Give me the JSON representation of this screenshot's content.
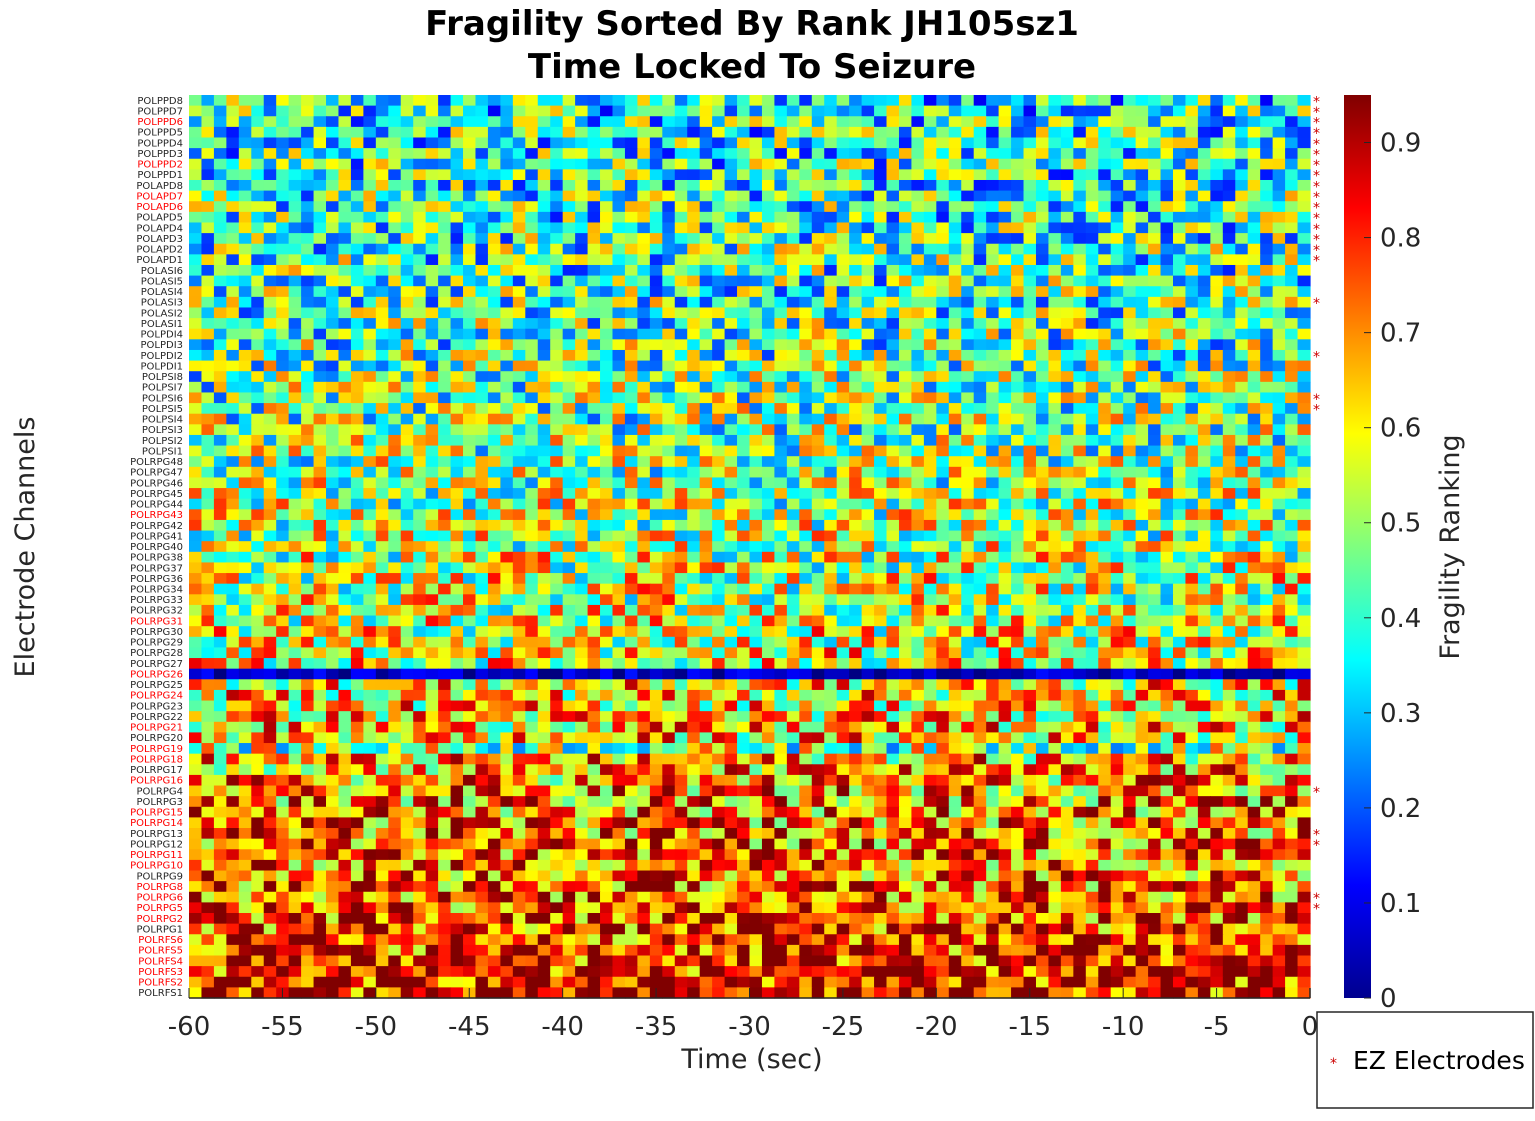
{
  "chart_data": {
    "type": "heatmap",
    "title": "Fragility Sorted By Rank JH105sz1",
    "subtitle": "Time Locked To Seizure",
    "xlabel": "Time (sec)",
    "ylabel": "Electrode Channels",
    "colorbar_label": "Fragility Ranking",
    "colormap": "jet",
    "x_range": [
      -60,
      0
    ],
    "x_ticks": [
      "-60",
      "-55",
      "-50",
      "-45",
      "-40",
      "-35",
      "-30",
      "-25",
      "-20",
      "-15",
      "-10",
      "-5",
      "0"
    ],
    "colorbar_range": [
      0,
      0.95
    ],
    "colorbar_ticks": [
      "0",
      "0.1",
      "0.2",
      "0.3",
      "0.4",
      "0.5",
      "0.6",
      "0.7",
      "0.8",
      "0.9"
    ],
    "time_bins": 90,
    "grid": false,
    "legend": {
      "label": "EZ Electrodes",
      "marker": "*",
      "color": "#cc0000",
      "position": "bottom-right"
    },
    "channels": [
      {
        "name": "POLPPD8",
        "ez": false,
        "star": true,
        "mean": 0.38
      },
      {
        "name": "POLPPD7",
        "ez": false,
        "star": true,
        "mean": 0.38
      },
      {
        "name": "POLPPD6",
        "ez": true,
        "star": true,
        "mean": 0.39
      },
      {
        "name": "POLPPD5",
        "ez": false,
        "star": true,
        "mean": 0.39
      },
      {
        "name": "POLPPD4",
        "ez": false,
        "star": true,
        "mean": 0.4
      },
      {
        "name": "POLPPD3",
        "ez": false,
        "star": true,
        "mean": 0.4
      },
      {
        "name": "POLPPD2",
        "ez": true,
        "star": true,
        "mean": 0.4
      },
      {
        "name": "POLPPD1",
        "ez": false,
        "star": true,
        "mean": 0.4
      },
      {
        "name": "POLAPD8",
        "ez": false,
        "star": true,
        "mean": 0.41
      },
      {
        "name": "POLAPD7",
        "ez": true,
        "star": true,
        "mean": 0.41
      },
      {
        "name": "POLAPD6",
        "ez": true,
        "star": true,
        "mean": 0.41
      },
      {
        "name": "POLAPD5",
        "ez": false,
        "star": true,
        "mean": 0.41
      },
      {
        "name": "POLAPD4",
        "ez": false,
        "star": true,
        "mean": 0.41
      },
      {
        "name": "POLAPD3",
        "ez": false,
        "star": true,
        "mean": 0.42
      },
      {
        "name": "POLAPD2",
        "ez": false,
        "star": true,
        "mean": 0.42
      },
      {
        "name": "POLAPD1",
        "ez": false,
        "star": true,
        "mean": 0.42
      },
      {
        "name": "POLASI6",
        "ez": false,
        "star": false,
        "mean": 0.42
      },
      {
        "name": "POLASI5",
        "ez": false,
        "star": false,
        "mean": 0.42
      },
      {
        "name": "POLASI4",
        "ez": false,
        "star": false,
        "mean": 0.43
      },
      {
        "name": "POLASI3",
        "ez": false,
        "star": true,
        "mean": 0.43
      },
      {
        "name": "POLASI2",
        "ez": false,
        "star": false,
        "mean": 0.43
      },
      {
        "name": "POLASI1",
        "ez": false,
        "star": false,
        "mean": 0.43
      },
      {
        "name": "POLPDI4",
        "ez": false,
        "star": false,
        "mean": 0.44
      },
      {
        "name": "POLPDI3",
        "ez": false,
        "star": false,
        "mean": 0.44
      },
      {
        "name": "POLPDI2",
        "ez": false,
        "star": true,
        "mean": 0.44
      },
      {
        "name": "POLPDI1",
        "ez": false,
        "star": false,
        "mean": 0.45
      },
      {
        "name": "POLPSI8",
        "ez": false,
        "star": false,
        "mean": 0.45
      },
      {
        "name": "POLPSI7",
        "ez": false,
        "star": false,
        "mean": 0.46
      },
      {
        "name": "POLPSI6",
        "ez": false,
        "star": true,
        "mean": 0.46
      },
      {
        "name": "POLPSI5",
        "ez": false,
        "star": true,
        "mean": 0.47
      },
      {
        "name": "POLPSI4",
        "ez": false,
        "star": false,
        "mean": 0.47
      },
      {
        "name": "POLPSI3",
        "ez": false,
        "star": false,
        "mean": 0.48
      },
      {
        "name": "POLPSI2",
        "ez": false,
        "star": false,
        "mean": 0.48
      },
      {
        "name": "POLPSI1",
        "ez": false,
        "star": false,
        "mean": 0.49
      },
      {
        "name": "POLRPG48",
        "ez": false,
        "star": false,
        "mean": 0.49
      },
      {
        "name": "POLRPG47",
        "ez": false,
        "star": false,
        "mean": 0.5
      },
      {
        "name": "POLRPG46",
        "ez": false,
        "star": false,
        "mean": 0.5
      },
      {
        "name": "POLRPG45",
        "ez": false,
        "star": false,
        "mean": 0.51
      },
      {
        "name": "POLRPG44",
        "ez": false,
        "star": false,
        "mean": 0.51
      },
      {
        "name": "POLRPG43",
        "ez": true,
        "star": false,
        "mean": 0.52
      },
      {
        "name": "POLRPG42",
        "ez": false,
        "star": false,
        "mean": 0.52
      },
      {
        "name": "POLRPG41",
        "ez": false,
        "star": false,
        "mean": 0.53
      },
      {
        "name": "POLRPG40",
        "ez": false,
        "star": false,
        "mean": 0.53
      },
      {
        "name": "POLRPG38",
        "ez": false,
        "star": false,
        "mean": 0.54
      },
      {
        "name": "POLRPG37",
        "ez": false,
        "star": false,
        "mean": 0.54
      },
      {
        "name": "POLRPG36",
        "ez": false,
        "star": false,
        "mean": 0.55
      },
      {
        "name": "POLRPG34",
        "ez": false,
        "star": false,
        "mean": 0.55
      },
      {
        "name": "POLRPG33",
        "ez": false,
        "star": false,
        "mean": 0.55
      },
      {
        "name": "POLRPG32",
        "ez": false,
        "star": false,
        "mean": 0.56
      },
      {
        "name": "POLRPG31",
        "ez": true,
        "star": false,
        "mean": 0.56
      },
      {
        "name": "POLRPG30",
        "ez": false,
        "star": false,
        "mean": 0.57
      },
      {
        "name": "POLRPG29",
        "ez": false,
        "star": false,
        "mean": 0.57
      },
      {
        "name": "POLRPG28",
        "ez": false,
        "star": false,
        "mean": 0.58
      },
      {
        "name": "POLRPG27",
        "ez": false,
        "star": false,
        "mean": 0.58
      },
      {
        "name": "POLRPG26",
        "ez": true,
        "star": false,
        "mean": 0.06
      },
      {
        "name": "POLRPG25",
        "ez": false,
        "star": false,
        "mean": 0.62
      },
      {
        "name": "POLRPG24",
        "ez": true,
        "star": false,
        "mean": 0.63
      },
      {
        "name": "POLRPG23",
        "ez": false,
        "star": false,
        "mean": 0.63
      },
      {
        "name": "POLRPG22",
        "ez": false,
        "star": false,
        "mean": 0.64
      },
      {
        "name": "POLRPG21",
        "ez": true,
        "star": false,
        "mean": 0.64
      },
      {
        "name": "POLRPG20",
        "ez": false,
        "star": false,
        "mean": 0.64
      },
      {
        "name": "POLRPG19",
        "ez": true,
        "star": false,
        "mean": 0.5
      },
      {
        "name": "POLRPG18",
        "ez": true,
        "star": false,
        "mean": 0.66
      },
      {
        "name": "POLRPG17",
        "ez": false,
        "star": false,
        "mean": 0.67
      },
      {
        "name": "POLRPG16",
        "ez": true,
        "star": false,
        "mean": 0.68
      },
      {
        "name": "POLRPG4",
        "ez": false,
        "star": true,
        "mean": 0.7
      },
      {
        "name": "POLRPG3",
        "ez": false,
        "star": false,
        "mean": 0.71
      },
      {
        "name": "POLRPG15",
        "ez": true,
        "star": false,
        "mean": 0.72
      },
      {
        "name": "POLRPG14",
        "ez": true,
        "star": false,
        "mean": 0.72
      },
      {
        "name": "POLRPG13",
        "ez": false,
        "star": true,
        "mean": 0.73
      },
      {
        "name": "POLRPG12",
        "ez": false,
        "star": true,
        "mean": 0.73
      },
      {
        "name": "POLRPG11",
        "ez": true,
        "star": false,
        "mean": 0.74
      },
      {
        "name": "POLRPG10",
        "ez": true,
        "star": false,
        "mean": 0.74
      },
      {
        "name": "POLRPG9",
        "ez": false,
        "star": false,
        "mean": 0.75
      },
      {
        "name": "POLRPG8",
        "ez": true,
        "star": false,
        "mean": 0.76
      },
      {
        "name": "POLRPG6",
        "ez": true,
        "star": true,
        "mean": 0.76
      },
      {
        "name": "POLRPG5",
        "ez": true,
        "star": true,
        "mean": 0.77
      },
      {
        "name": "POLRPG2",
        "ez": true,
        "star": false,
        "mean": 0.78
      },
      {
        "name": "POLRPG1",
        "ez": false,
        "star": false,
        "mean": 0.79
      },
      {
        "name": "POLRFS6",
        "ez": true,
        "star": false,
        "mean": 0.8
      },
      {
        "name": "POLRFS5",
        "ez": true,
        "star": false,
        "mean": 0.81
      },
      {
        "name": "POLRFS4",
        "ez": true,
        "star": false,
        "mean": 0.82
      },
      {
        "name": "POLRFS3",
        "ez": true,
        "star": false,
        "mean": 0.83
      },
      {
        "name": "POLRFS2",
        "ez": true,
        "star": false,
        "mean": 0.84
      },
      {
        "name": "POLRFS1",
        "ez": false,
        "star": false,
        "mean": 0.84
      }
    ]
  }
}
